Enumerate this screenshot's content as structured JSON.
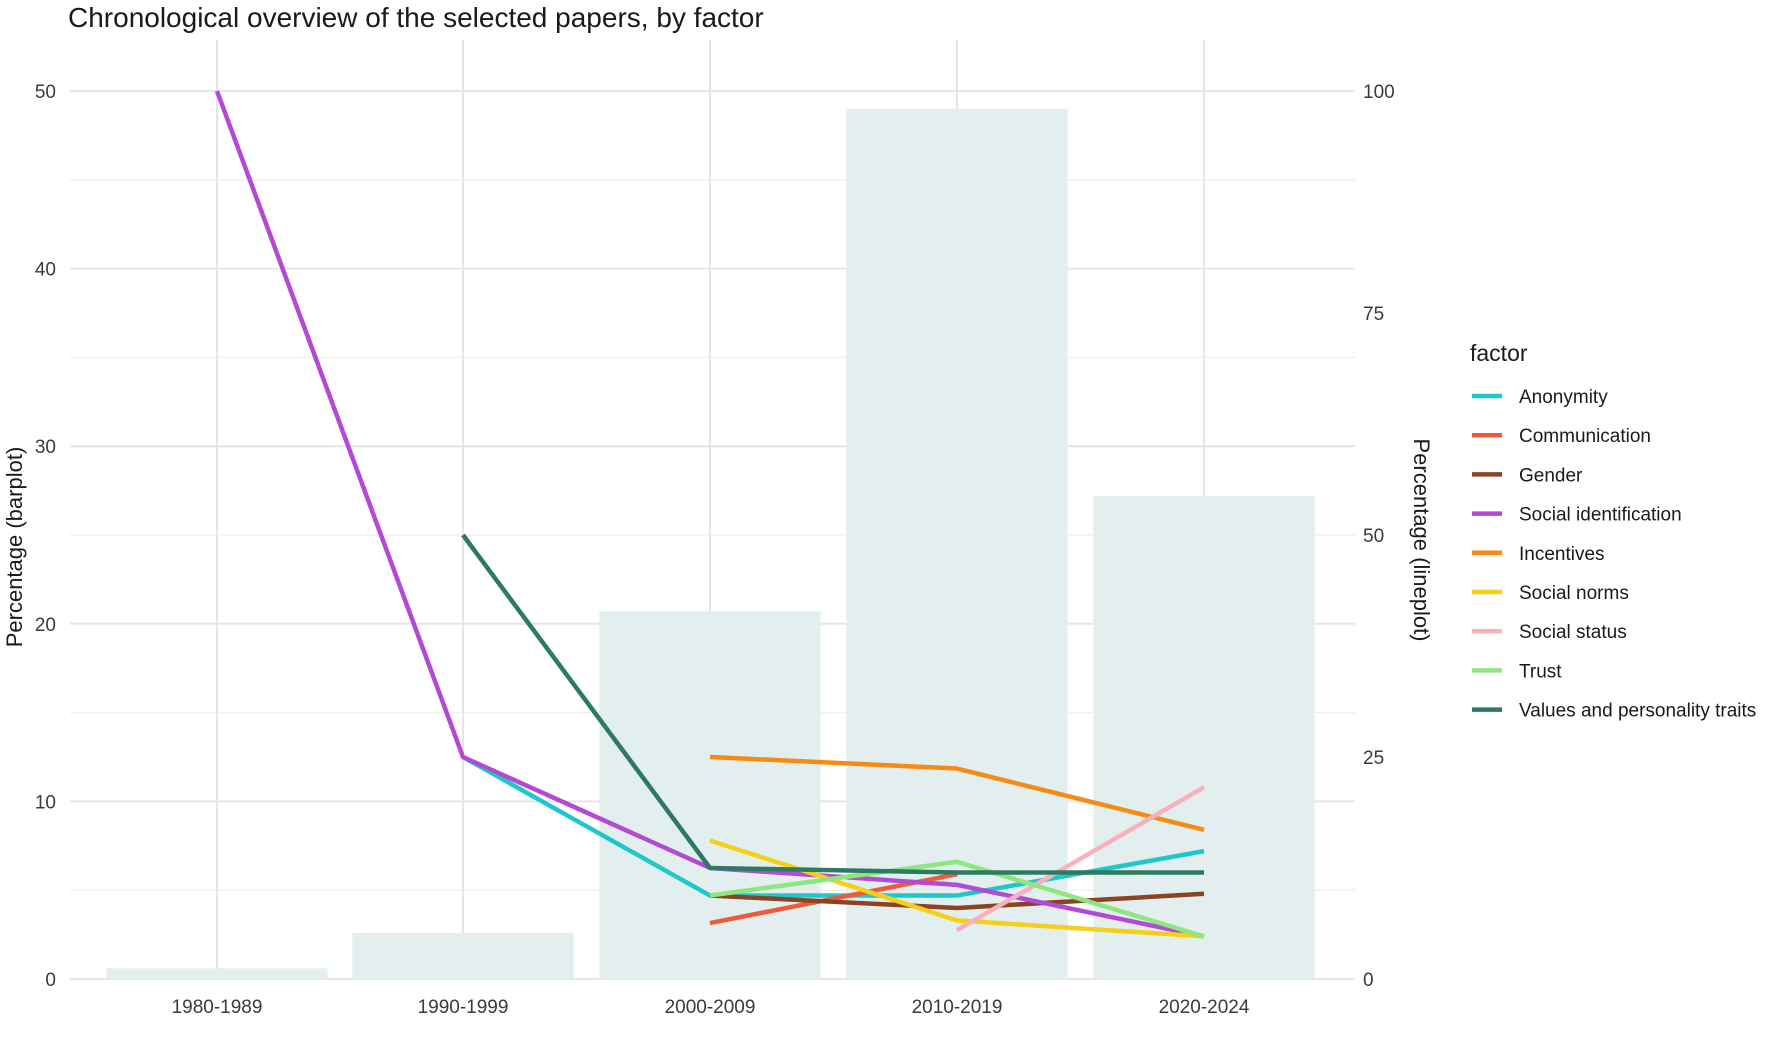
{
  "chart_data": {
    "type": "bar+line",
    "title": "Chronological overview of the selected papers, by factor",
    "xlabel": "",
    "ylabel_left": "Percentage (barplot)",
    "ylabel_right": "Percentage (lineplot)",
    "categories": [
      "1980-1989",
      "1990-1999",
      "2000-2009",
      "2010-2019",
      "2020-2024"
    ],
    "ylim_left": [
      0,
      50
    ],
    "yticks_left": [
      0,
      10,
      20,
      30,
      40,
      50
    ],
    "ylim_right": [
      0,
      100
    ],
    "yticks_right": [
      0,
      25,
      50,
      75,
      100
    ],
    "grid": true,
    "bar_color": "#e3efef",
    "bar_values": [
      0.6,
      2.6,
      20.7,
      49.0,
      27.2
    ],
    "legend_title": "factor",
    "legend_position": "right",
    "series": [
      {
        "name": "Anonymity",
        "color": "#1ec8c8",
        "values": [
          null,
          25.0,
          9.4,
          9.4,
          14.4
        ]
      },
      {
        "name": "Communication",
        "color": "#f05a3c",
        "values": [
          null,
          null,
          6.3,
          11.8,
          null
        ]
      },
      {
        "name": "Gender",
        "color": "#8b4423",
        "values": [
          null,
          null,
          9.4,
          8.0,
          9.6
        ]
      },
      {
        "name": "Social identification",
        "color": "#b24ad4",
        "values": [
          100.0,
          25.0,
          12.5,
          10.6,
          4.8
        ]
      },
      {
        "name": "Incentives",
        "color": "#f58a14",
        "values": [
          null,
          null,
          25.0,
          23.7,
          16.8
        ]
      },
      {
        "name": "Social norms",
        "color": "#f5cf19",
        "values": [
          null,
          null,
          15.6,
          6.6,
          4.8
        ]
      },
      {
        "name": "Social status",
        "color": "#f7b0bc",
        "values": [
          null,
          null,
          null,
          5.5,
          21.6
        ]
      },
      {
        "name": "Trust",
        "color": "#8de67f",
        "values": [
          null,
          null,
          9.4,
          13.2,
          4.8
        ]
      },
      {
        "name": "Values and personality traits",
        "color": "#2d7a62",
        "values": [
          null,
          50.0,
          12.5,
          12.0,
          12.0
        ]
      }
    ]
  }
}
